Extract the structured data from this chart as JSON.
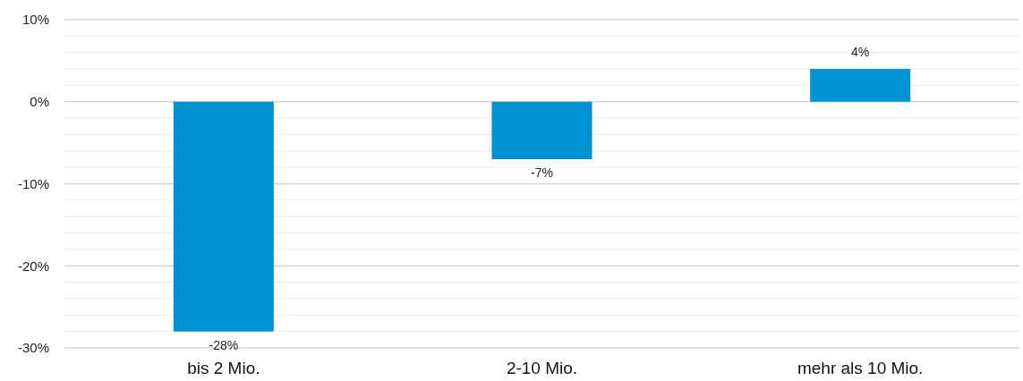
{
  "chart_data": {
    "type": "bar",
    "categories": [
      "bis 2 Mio.",
      "2-10 Mio.",
      "mehr als 10 Mio."
    ],
    "values": [
      -28,
      -7,
      4
    ],
    "value_labels": [
      "-28%",
      "-7%",
      "4%"
    ],
    "color": "#0091d0",
    "ylim": [
      -30,
      10
    ],
    "yticks": [
      {
        "value": -30,
        "label": "-30%"
      },
      {
        "value": -28,
        "label": null
      },
      {
        "value": -26,
        "label": null
      },
      {
        "value": -24,
        "label": null
      },
      {
        "value": -22,
        "label": null
      },
      {
        "value": -20,
        "label": "-20%"
      },
      {
        "value": -18,
        "label": null
      },
      {
        "value": -16,
        "label": null
      },
      {
        "value": -14,
        "label": null
      },
      {
        "value": -12,
        "label": null
      },
      {
        "value": -10,
        "label": "-10%"
      },
      {
        "value": -8,
        "label": null
      },
      {
        "value": -6,
        "label": null
      },
      {
        "value": -4,
        "label": null
      },
      {
        "value": -2,
        "label": null
      },
      {
        "value": 0,
        "label": "0%"
      },
      {
        "value": 2,
        "label": null
      },
      {
        "value": 4,
        "label": null
      },
      {
        "value": 6,
        "label": null
      },
      {
        "value": 8,
        "label": null
      },
      {
        "value": 10,
        "label": "10%"
      }
    ],
    "grid": "y"
  }
}
